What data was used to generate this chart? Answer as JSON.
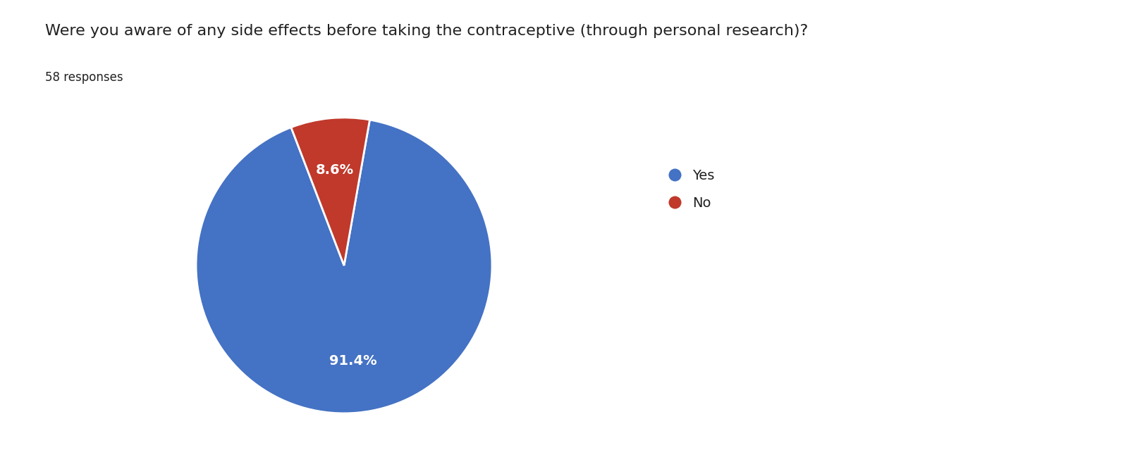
{
  "title": "Were you aware of any side effects before taking the contraceptive (through personal research)?",
  "subtitle": "58 responses",
  "labels": [
    "Yes",
    "No"
  ],
  "values": [
    91.4,
    8.6
  ],
  "colors": [
    "#4472C4",
    "#C0392B"
  ],
  "legend_labels": [
    "Yes",
    "No"
  ],
  "title_fontsize": 16,
  "subtitle_fontsize": 12,
  "autopct_fontsize": 14,
  "legend_fontsize": 14,
  "background_color": "#ffffff",
  "text_color": "#212121",
  "startangle": 80,
  "pctdistance_yes": 0.55,
  "pctdistance_no": 0.75
}
